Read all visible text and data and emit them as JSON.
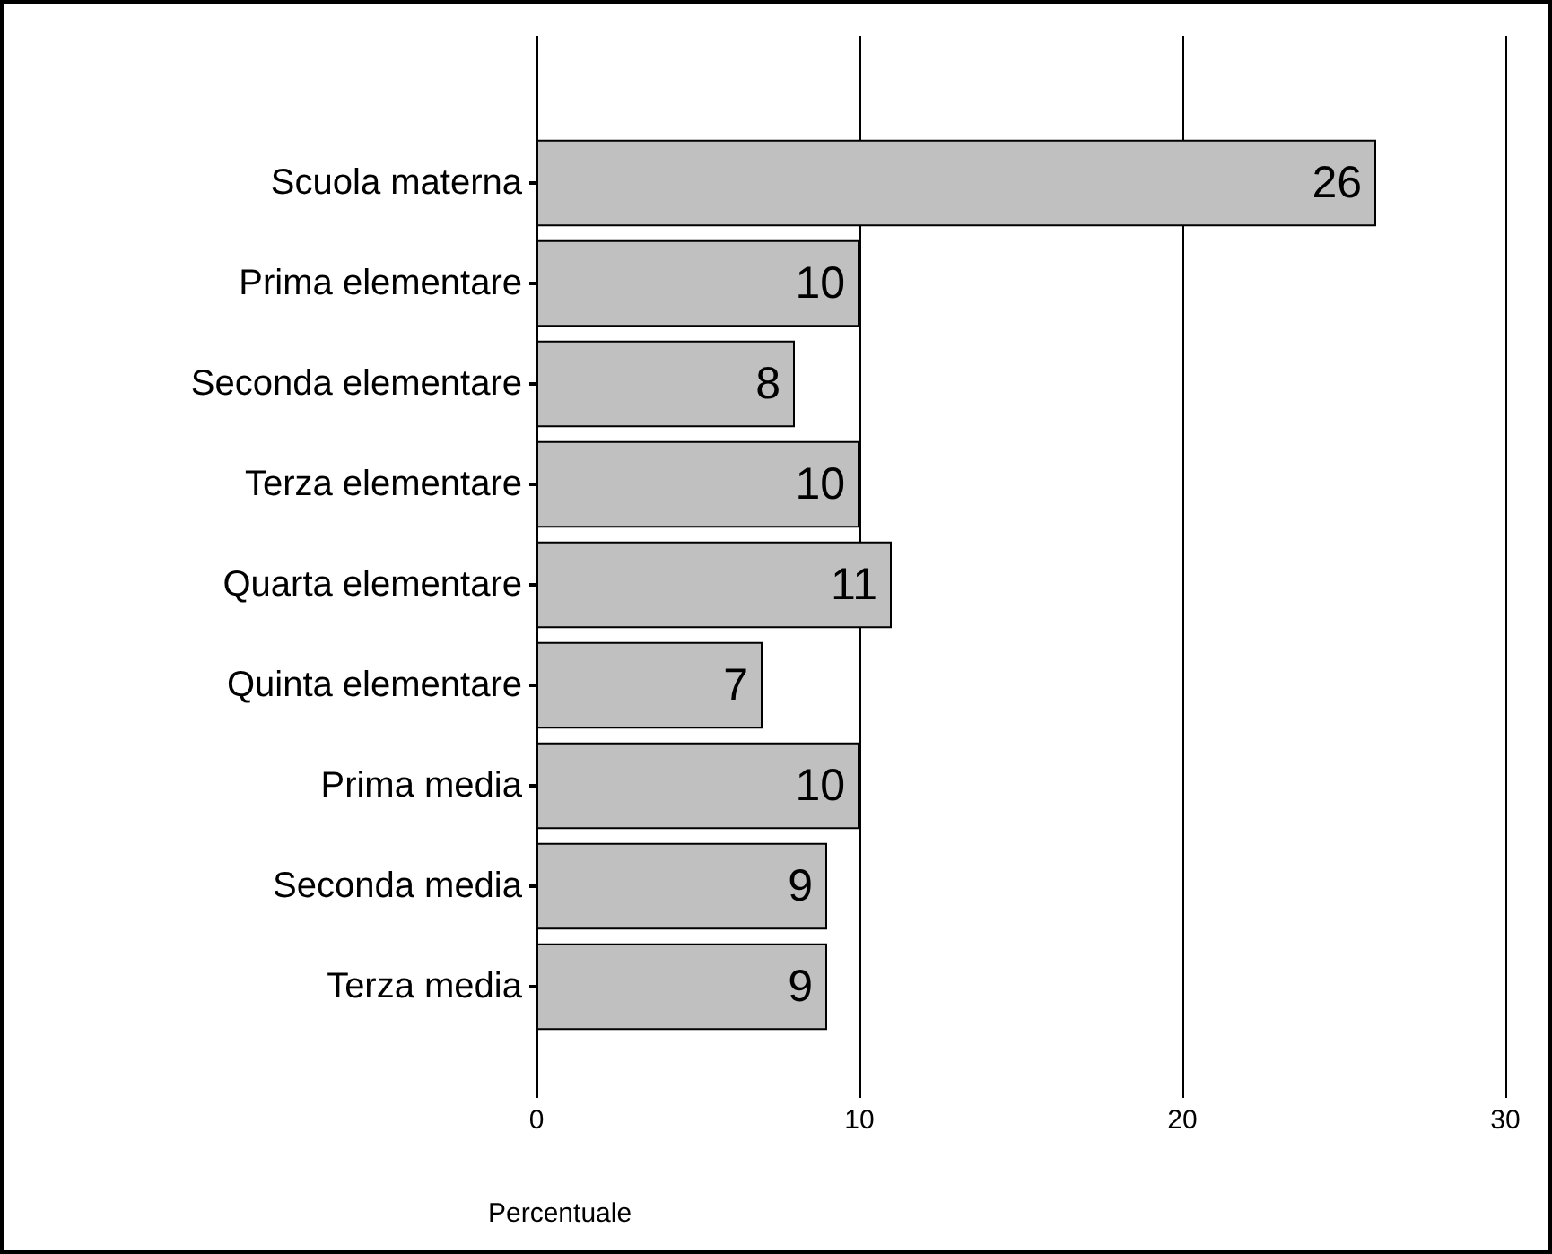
{
  "chart_data": {
    "type": "bar",
    "orientation": "horizontal",
    "xlabel": "Percentuale",
    "categories": [
      "Scuola materna",
      "Prima elementare",
      "Seconda elementare",
      "Terza elementare",
      "Quarta elementare",
      "Quinta elementare",
      "Prima media",
      "Seconda media",
      "Terza media"
    ],
    "values": [
      26,
      10,
      8,
      10,
      11,
      7,
      10,
      9,
      9
    ],
    "color": "#c0c0c0",
    "xlim": [
      0,
      30
    ],
    "xticks": [
      0,
      10,
      20,
      30
    ],
    "grid": "x",
    "data_labels": true
  }
}
